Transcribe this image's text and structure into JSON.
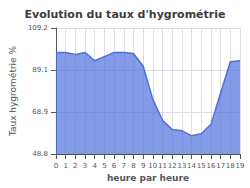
{
  "chart_data": {
    "type": "area",
    "title": "Evolution du taux d'hygrométrie",
    "xlabel": "heure par heure",
    "ylabel": "Taux hygrométrie %",
    "x": [
      0,
      1,
      2,
      3,
      4,
      5,
      6,
      7,
      8,
      9,
      10,
      11,
      12,
      13,
      14,
      15,
      16,
      17,
      18,
      19
    ],
    "values": [
      97.5,
      97.5,
      96.5,
      97.5,
      93.5,
      95.5,
      97.5,
      97.5,
      97.0,
      91.0,
      75.0,
      65.0,
      60.5,
      60.0,
      57.5,
      58.5,
      63.0,
      78.0,
      93.0,
      93.5
    ],
    "xlim": [
      0,
      19
    ],
    "xticks": [
      0,
      1,
      2,
      3,
      4,
      5,
      6,
      7,
      8,
      9,
      10,
      11,
      12,
      13,
      14,
      15,
      16,
      17,
      18,
      19
    ],
    "ylim": [
      48.8,
      109.2
    ],
    "yticks": [
      48.8,
      68.9,
      89.1,
      109.2
    ],
    "grid": true
  }
}
